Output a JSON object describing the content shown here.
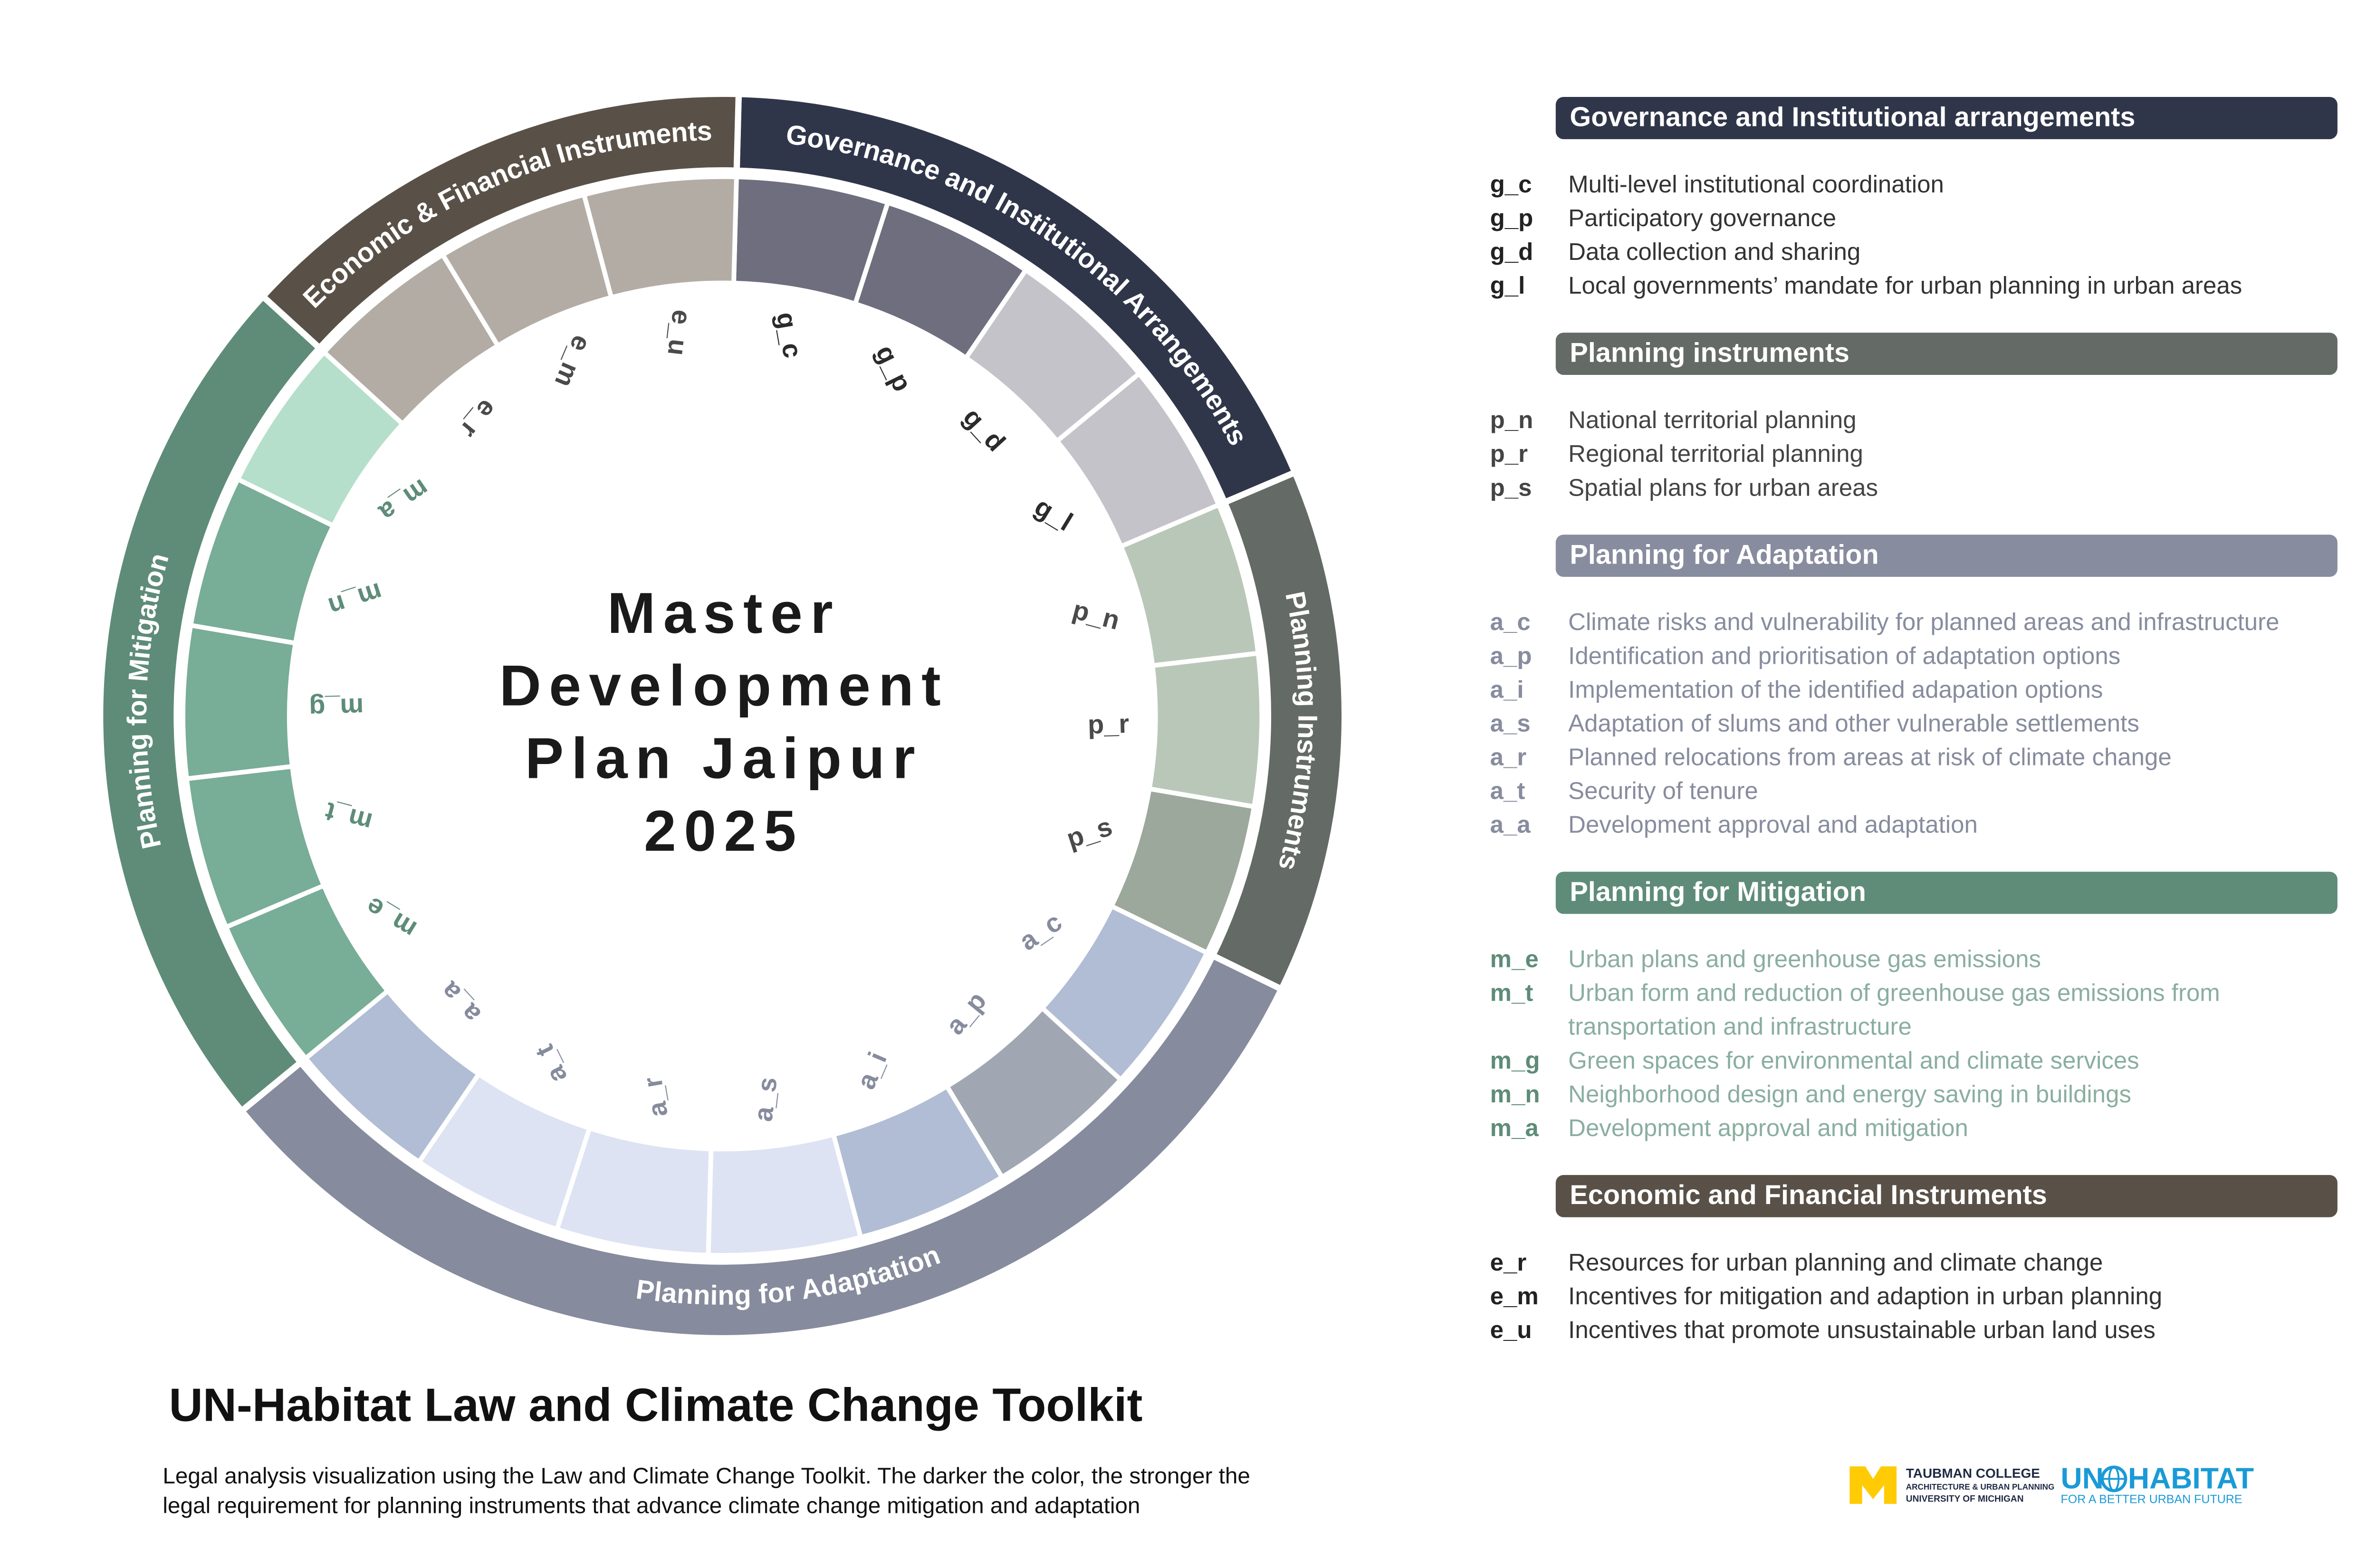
{
  "ring": {
    "groups": [
      {
        "label": "Governance and Institutional Arrangements",
        "color": "#30364a",
        "code_color": "#2b2b2b",
        "segments": [
          {
            "code": "g_c",
            "color": "#6f6e7e"
          },
          {
            "code": "g_p",
            "color": "#6f6e7e"
          },
          {
            "code": "g_d",
            "color": "#c3c3c9"
          },
          {
            "code": "g_l",
            "color": "#c3c3c9"
          }
        ]
      },
      {
        "label": "Planning Instruments",
        "color": "#646a66",
        "code_color": "#4a4a4a",
        "segments": [
          {
            "code": "p_n",
            "color": "#b9c7b9"
          },
          {
            "code": "p_r",
            "color": "#b9c7b9"
          },
          {
            "code": "p_s",
            "color": "#9ba89b"
          }
        ]
      },
      {
        "label": "Planning for Adaptation",
        "color": "#868b9d",
        "code_color": "#868b9d",
        "segments": [
          {
            "code": "a_c",
            "color": "#b1bdd4"
          },
          {
            "code": "a_p",
            "color": "#a0a7b3"
          },
          {
            "code": "a_i",
            "color": "#b1bdd4"
          },
          {
            "code": "a_s",
            "color": "#dde3f3"
          },
          {
            "code": "a_r",
            "color": "#dde3f3"
          },
          {
            "code": "a_t",
            "color": "#dde3f3"
          },
          {
            "code": "a_a",
            "color": "#b1bdd4"
          }
        ]
      },
      {
        "label": "Planning for Mitigation",
        "color": "#5e8c78",
        "code_color": "#5e8c78",
        "segments": [
          {
            "code": "m_e",
            "color": "#78ad97"
          },
          {
            "code": "m_t",
            "color": "#78ad97"
          },
          {
            "code": "m_g",
            "color": "#78ad97"
          },
          {
            "code": "m_n",
            "color": "#78ad97"
          },
          {
            "code": "m_a",
            "color": "#b5dfcb"
          }
        ]
      },
      {
        "label": "Economic & Financial Instruments",
        "color": "#595147",
        "code_color": "#4a4a4a",
        "segments": [
          {
            "code": "e_r",
            "color": "#b3aca5"
          },
          {
            "code": "e_m",
            "color": "#b3aca5"
          },
          {
            "code": "e_u",
            "color": "#b3aca5"
          }
        ]
      }
    ]
  },
  "center_title": [
    "Master",
    "Development",
    "Plan Jaipur",
    "2025"
  ],
  "legend": [
    {
      "title": "Governance and Institutional arrangements",
      "color": "#30364a",
      "code_color": "#222222",
      "text_color": "#333333",
      "items": [
        {
          "code": "g_c",
          "lines": [
            "Multi-level institutional coordination"
          ]
        },
        {
          "code": "g_p",
          "lines": [
            "Participatory governance"
          ]
        },
        {
          "code": "g_d",
          "lines": [
            "Data collection and sharing"
          ]
        },
        {
          "code": "g_l",
          "lines": [
            "Local governments’ mandate for urban planning in urban areas"
          ]
        }
      ]
    },
    {
      "title": "Planning instruments",
      "color": "#646a66",
      "code_color": "#444444",
      "text_color": "#444444",
      "items": [
        {
          "code": "p_n",
          "lines": [
            "National territorial planning"
          ]
        },
        {
          "code": "p_r",
          "lines": [
            "Regional territorial planning"
          ]
        },
        {
          "code": "p_s",
          "lines": [
            "Spatial plans for urban areas"
          ]
        }
      ]
    },
    {
      "title": "Planning for Adaptation",
      "color": "#878c9e",
      "code_color": "#878c9e",
      "text_color": "#878c9e",
      "items": [
        {
          "code": "a_c",
          "lines": [
            "Climate risks and vulnerability for planned areas and infrastructure"
          ]
        },
        {
          "code": "a_p",
          "lines": [
            "Identification and prioritisation of adaptation options"
          ]
        },
        {
          "code": "a_i",
          "lines": [
            "Implementation of the identified adapation options"
          ]
        },
        {
          "code": "a_s",
          "lines": [
            "Adaptation of slums and other vulnerable settlements"
          ]
        },
        {
          "code": "a_r",
          "lines": [
            "Planned relocations from areas at risk of climate change"
          ]
        },
        {
          "code": "a_t",
          "lines": [
            "Security of tenure"
          ]
        },
        {
          "code": "a_a",
          "lines": [
            "Development approval and adaptation"
          ]
        }
      ]
    },
    {
      "title": "Planning for Mitigation",
      "color": "#5e8c78",
      "code_color": "#5e8c78",
      "text_color": "#8aaea0",
      "items": [
        {
          "code": "m_e",
          "lines": [
            "Urban plans and greenhouse gas emissions"
          ]
        },
        {
          "code": "m_t",
          "lines": [
            "Urban form and reduction of greenhouse gas emissions from",
            "transportation and infrastructure"
          ]
        },
        {
          "code": "m_g",
          "lines": [
            "Green spaces for environmental and climate services"
          ]
        },
        {
          "code": "m_n",
          "lines": [
            "Neighborhood design and energy saving in buildings"
          ]
        },
        {
          "code": "m_a",
          "lines": [
            "Development approval and mitigation"
          ]
        }
      ]
    },
    {
      "title": "Economic and Financial Instruments",
      "color": "#595147",
      "code_color": "#222222",
      "text_color": "#333333",
      "items": [
        {
          "code": "e_r",
          "lines": [
            "Resources for urban planning and climate change"
          ]
        },
        {
          "code": "e_m",
          "lines": [
            "Incentives for mitigation and adaption in urban planning"
          ]
        },
        {
          "code": "e_u",
          "lines": [
            "Incentives that promote unsustainable urban land uses"
          ]
        }
      ]
    }
  ],
  "footer": {
    "title": "UN-Habitat Law and Climate Change Toolkit",
    "description": [
      "Legal analysis visualization using the Law and Climate Change Toolkit. The darker the color, the stronger the",
      "legal requirement for planning instruments that advance climate change mitigation and adaptation"
    ]
  },
  "logos": {
    "taubman": [
      "TAUBMAN COLLEGE",
      "ARCHITECTURE & URBAN PLANNING",
      "UNIVERSITY OF MICHIGAN"
    ],
    "un_habitat": {
      "left": "UN",
      "right": "HABITAT",
      "tagline": "FOR A BETTER URBAN FUTURE"
    }
  }
}
